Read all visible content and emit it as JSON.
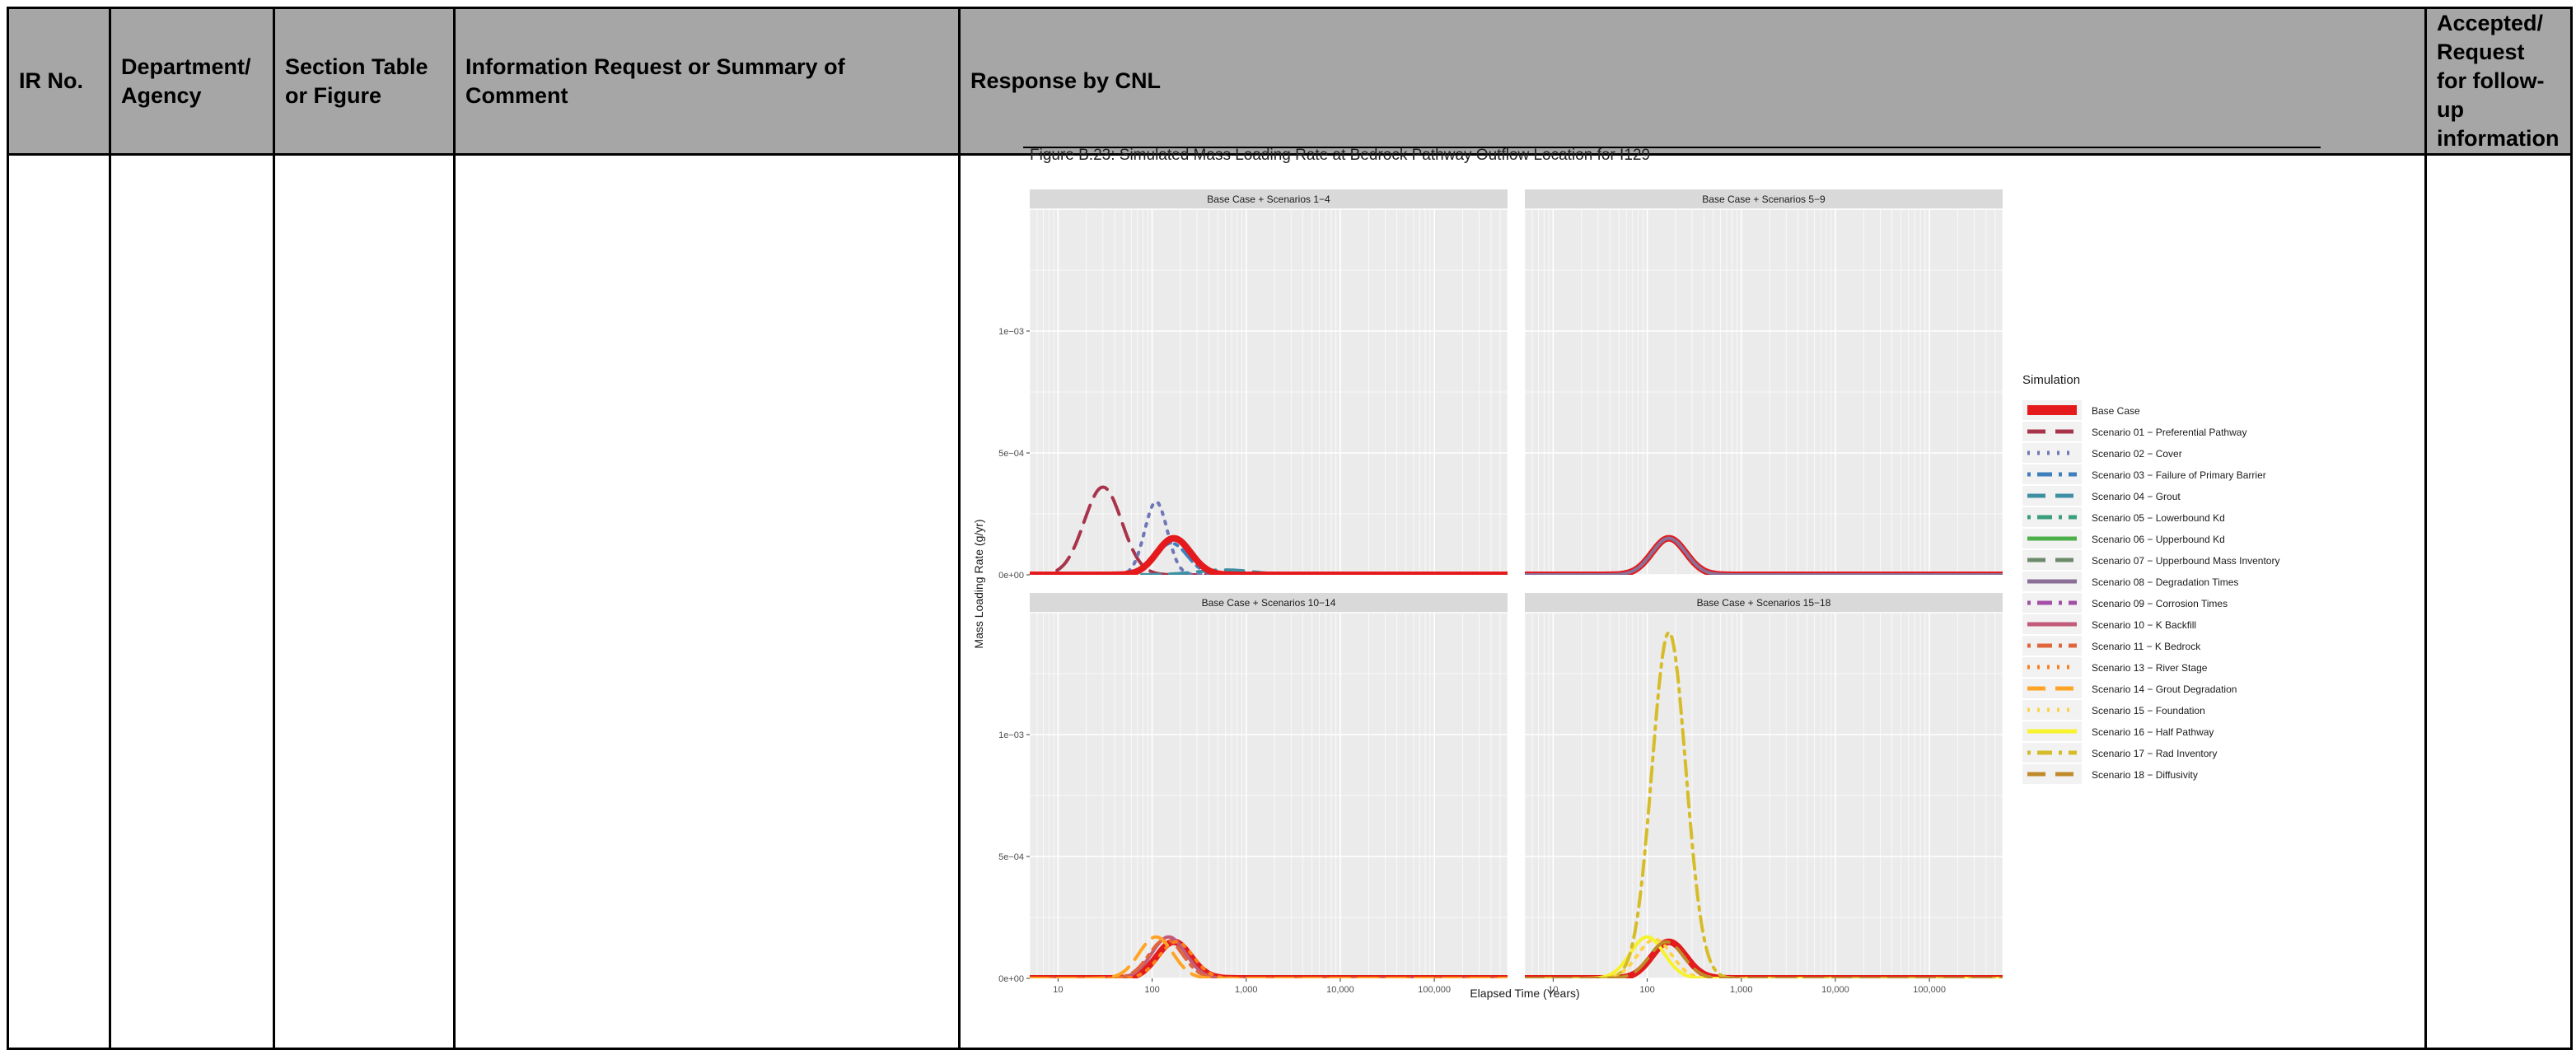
{
  "table": {
    "headers": [
      "IR No.",
      "Department/ Agency",
      "Section Table or Figure",
      "Information Request or Summary of Comment",
      "Response by CNL",
      "Accepted/ Request for follow-up information"
    ],
    "header_bg": "#a6a6a6"
  },
  "figure": {
    "caption": "Figure B.23: Simulated Mass Loading Rate at Bedrock Pathway Outflow Location for I129"
  },
  "chart_data": {
    "type": "line",
    "xlabel": "Elapsed Time (Years)",
    "ylabel": "Mass Loading Rate (g/yr)",
    "x_scale": "log",
    "xlim": [
      5,
      600000
    ],
    "ylim": [
      0,
      0.0015
    ],
    "x_ticks": [
      10,
      100,
      1000,
      10000,
      100000
    ],
    "x_tick_labels": [
      "10",
      "100",
      "1,000",
      "10,000",
      "100,000"
    ],
    "y_ticks": [
      0,
      0.0005,
      0.001
    ],
    "y_tick_labels": [
      "0e+00",
      "5e−04",
      "1e−03"
    ],
    "grid": true,
    "legend_title": "Simulation",
    "legend_position": "right",
    "panels": [
      {
        "title": "Base Case + Scenarios 1−4",
        "series": [
          {
            "name": "Scenario 01 − Preferential Pathway",
            "peak": 0.00036,
            "peak_year": 30,
            "width": 0.2
          },
          {
            "name": "Scenario 02 − Cover",
            "peak": 0.0003,
            "peak_year": 110,
            "width": 0.12
          },
          {
            "name": "Scenario 03 − Failure of Primary Barrier",
            "peak": 0.00013,
            "peak_year": 160,
            "width": 0.17
          },
          {
            "name": "Scenario 04 − Grout",
            "peak": 2e-05,
            "peak_year": 600,
            "width": 0.3
          },
          {
            "name": "Base Case",
            "peak": 0.00015,
            "peak_year": 170,
            "width": 0.18
          }
        ]
      },
      {
        "title": "Base Case + Scenarios 5−9",
        "series": [
          {
            "name": "Base Case",
            "peak": 0.00015,
            "peak_year": 170,
            "width": 0.18
          },
          {
            "name": "Scenario 08 − Degradation Times",
            "peak": 0.00015,
            "peak_year": 170,
            "width": 0.18
          }
        ]
      },
      {
        "title": "Base Case + Scenarios 10−14",
        "series": [
          {
            "name": "Base Case",
            "peak": 0.00015,
            "peak_year": 170,
            "width": 0.18
          },
          {
            "name": "Scenario 10 − K Backfill",
            "peak": 0.00017,
            "peak_year": 150,
            "width": 0.18
          },
          {
            "name": "Scenario 11 − K Bedrock",
            "peak": 0.00016,
            "peak_year": 140,
            "width": 0.18
          },
          {
            "name": "Scenario 13 − River Stage",
            "peak": 0.00015,
            "peak_year": 180,
            "width": 0.18
          },
          {
            "name": "Scenario 14 − Grout Degradation",
            "peak": 0.00017,
            "peak_year": 110,
            "width": 0.18
          }
        ]
      },
      {
        "title": "Base Case + Scenarios 15−18",
        "series": [
          {
            "name": "Base Case",
            "peak": 0.00015,
            "peak_year": 170,
            "width": 0.18
          },
          {
            "name": "Scenario 15 − Foundation",
            "peak": 0.00016,
            "peak_year": 120,
            "width": 0.18
          },
          {
            "name": "Scenario 16 − Half Pathway",
            "peak": 0.00017,
            "peak_year": 100,
            "width": 0.18
          },
          {
            "name": "Scenario 17 − Rad Inventory",
            "peak": 0.00142,
            "peak_year": 170,
            "width": 0.18
          },
          {
            "name": "Scenario 18 − Diffusivity",
            "peak": 0.00015,
            "peak_year": 160,
            "width": 0.18
          }
        ]
      }
    ],
    "legend": [
      {
        "name": "Base Case",
        "color": "#e41a1c",
        "dash": "solid",
        "thick": true
      },
      {
        "name": "Scenario 01 − Preferential Pathway",
        "color": "#a8344b",
        "dash": "long"
      },
      {
        "name": "Scenario 02 − Cover",
        "color": "#6f77b6",
        "dash": "dot"
      },
      {
        "name": "Scenario 03 − Failure of Primary Barrier",
        "color": "#3f7fbd",
        "dash": "dotlong"
      },
      {
        "name": "Scenario 04 − Grout",
        "color": "#3e8fa3",
        "dash": "long"
      },
      {
        "name": "Scenario 05 − Lowerbound Kd",
        "color": "#3a9e7c",
        "dash": "dotlong"
      },
      {
        "name": "Scenario 06 − Upperbound Kd",
        "color": "#4daf4a",
        "dash": "solid"
      },
      {
        "name": "Scenario 07 − Upperbound Mass Inventory",
        "color": "#6e8a6a",
        "dash": "long"
      },
      {
        "name": "Scenario 08 − Degradation Times",
        "color": "#8a6f97",
        "dash": "solid"
      },
      {
        "name": "Scenario 09 − Corrosion Times",
        "color": "#a24fa5",
        "dash": "dotlong"
      },
      {
        "name": "Scenario 10 − K Backfill",
        "color": "#c25a7a",
        "dash": "solid"
      },
      {
        "name": "Scenario 11 − K Bedrock",
        "color": "#e0663f",
        "dash": "dotlong"
      },
      {
        "name": "Scenario 13 − River Stage",
        "color": "#fd7f1c",
        "dash": "dot"
      },
      {
        "name": "Scenario 14 − Grout Degradation",
        "color": "#ffa425",
        "dash": "long"
      },
      {
        "name": "Scenario 15 − Foundation",
        "color": "#ffd245",
        "dash": "dot"
      },
      {
        "name": "Scenario 16 − Half Pathway",
        "color": "#f6f22c",
        "dash": "solid"
      },
      {
        "name": "Scenario 17 − Rad Inventory",
        "color": "#d7bc29",
        "dash": "dotlong"
      },
      {
        "name": "Scenario 18 − Diffusivity",
        "color": "#c08a2a",
        "dash": "long"
      }
    ]
  }
}
